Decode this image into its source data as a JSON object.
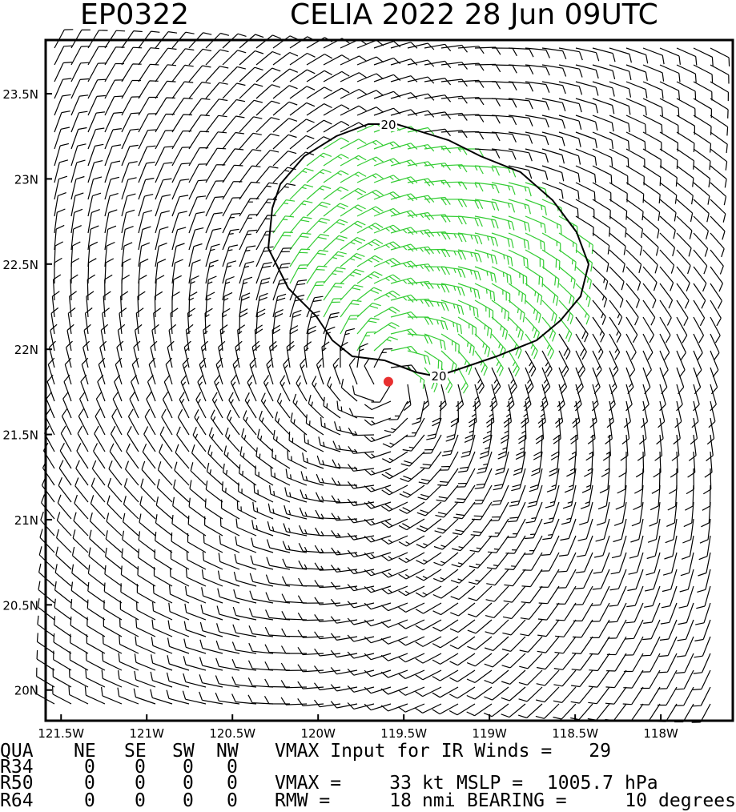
{
  "title_id": "EP0322",
  "title": "CELIA 2022 28 Jun 09UTC",
  "map": {
    "xlim": [
      -121.59,
      -117.58
    ],
    "ylim": [
      19.82,
      23.815
    ],
    "xticks": [
      {
        "value": -121.5,
        "label": "121.5W"
      },
      {
        "value": -121,
        "label": "121W"
      },
      {
        "value": -120.5,
        "label": "120.5W"
      },
      {
        "value": -120,
        "label": "120W"
      },
      {
        "value": -119.5,
        "label": "119.5W"
      },
      {
        "value": -119,
        "label": "119W"
      },
      {
        "value": -118.5,
        "label": "118.5W"
      },
      {
        "value": -118,
        "label": "118W"
      }
    ],
    "yticks": [
      {
        "value": 20,
        "label": "20N"
      },
      {
        "value": 20.5,
        "label": "20.5N"
      },
      {
        "value": 21,
        "label": "21N"
      },
      {
        "value": 21.5,
        "label": "21.5N"
      },
      {
        "value": 22,
        "label": "22N"
      },
      {
        "value": 22.5,
        "label": "22.5N"
      },
      {
        "value": 23,
        "label": "23N"
      },
      {
        "value": 23.5,
        "label": "23.5N"
      }
    ],
    "storm_center": {
      "lon": -119.59,
      "lat": 21.81,
      "color": "#e83030"
    },
    "contour_level": 20
  },
  "table": {
    "header": [
      "QUA",
      "NE",
      "SE",
      "SW",
      "NW"
    ],
    "rows": [
      [
        "R34",
        0,
        0,
        0,
        0
      ],
      [
        "R50",
        0,
        0,
        0,
        0
      ],
      [
        "R64",
        0,
        0,
        0,
        0
      ]
    ]
  },
  "info": {
    "vmax_ir_label": "VMAX Input for IR Winds =",
    "vmax_ir": 29,
    "vmax_label": "VMAX =",
    "vmax": 33,
    "vmax_unit": "kt",
    "mslp_label": "MSLP =",
    "mslp": 1005.7,
    "mslp_unit": "hPa",
    "rmw_label": "RMW =",
    "rmw": 18,
    "rmw_unit": "nmi",
    "bearing_label": "BEARING =",
    "bearing": 10,
    "bearing_unit": "degrees"
  }
}
